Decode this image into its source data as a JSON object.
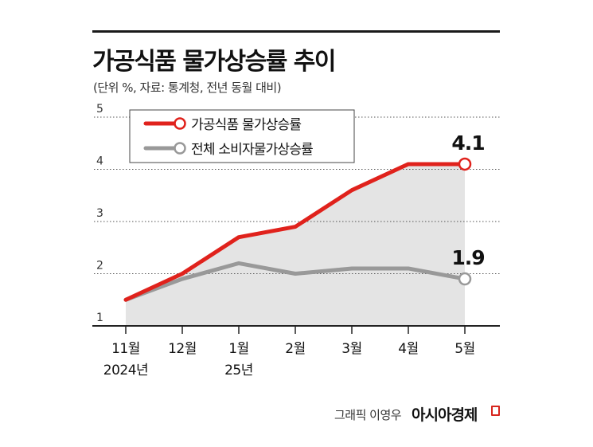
{
  "title": "가공식품 물가상승률 추이",
  "subtitle": "(단위 %, 자료: 통계청, 전년 동월 대비)",
  "chart_data": {
    "type": "line",
    "categories": [
      "11월",
      "12월",
      "1월",
      "2월",
      "3월",
      "4월",
      "5월"
    ],
    "category_sublabels": [
      "2024년",
      "",
      "25년",
      "",
      "",
      "",
      ""
    ],
    "series": [
      {
        "name": "가공식품 물가상승률",
        "color": "#e0221c",
        "values": [
          1.5,
          2.0,
          2.7,
          2.9,
          3.6,
          4.1,
          4.1
        ]
      },
      {
        "name": "전체 소비자물가상승률",
        "color": "#999999",
        "values": [
          1.5,
          1.9,
          2.2,
          2.0,
          2.1,
          2.1,
          1.9
        ]
      }
    ],
    "end_labels": [
      "4.1",
      "1.9"
    ],
    "ylim": [
      1,
      5
    ],
    "yticks": [
      "1",
      "2",
      "3",
      "4",
      "5"
    ],
    "grid": "dotted",
    "legend": "top-left",
    "area_fill": "#e4e4e4"
  },
  "credit": "그래픽 이영우",
  "brand": "아시아경제",
  "colors": {
    "accent": "#e0221c",
    "secondary": "#999999",
    "fill": "#e4e4e4"
  }
}
